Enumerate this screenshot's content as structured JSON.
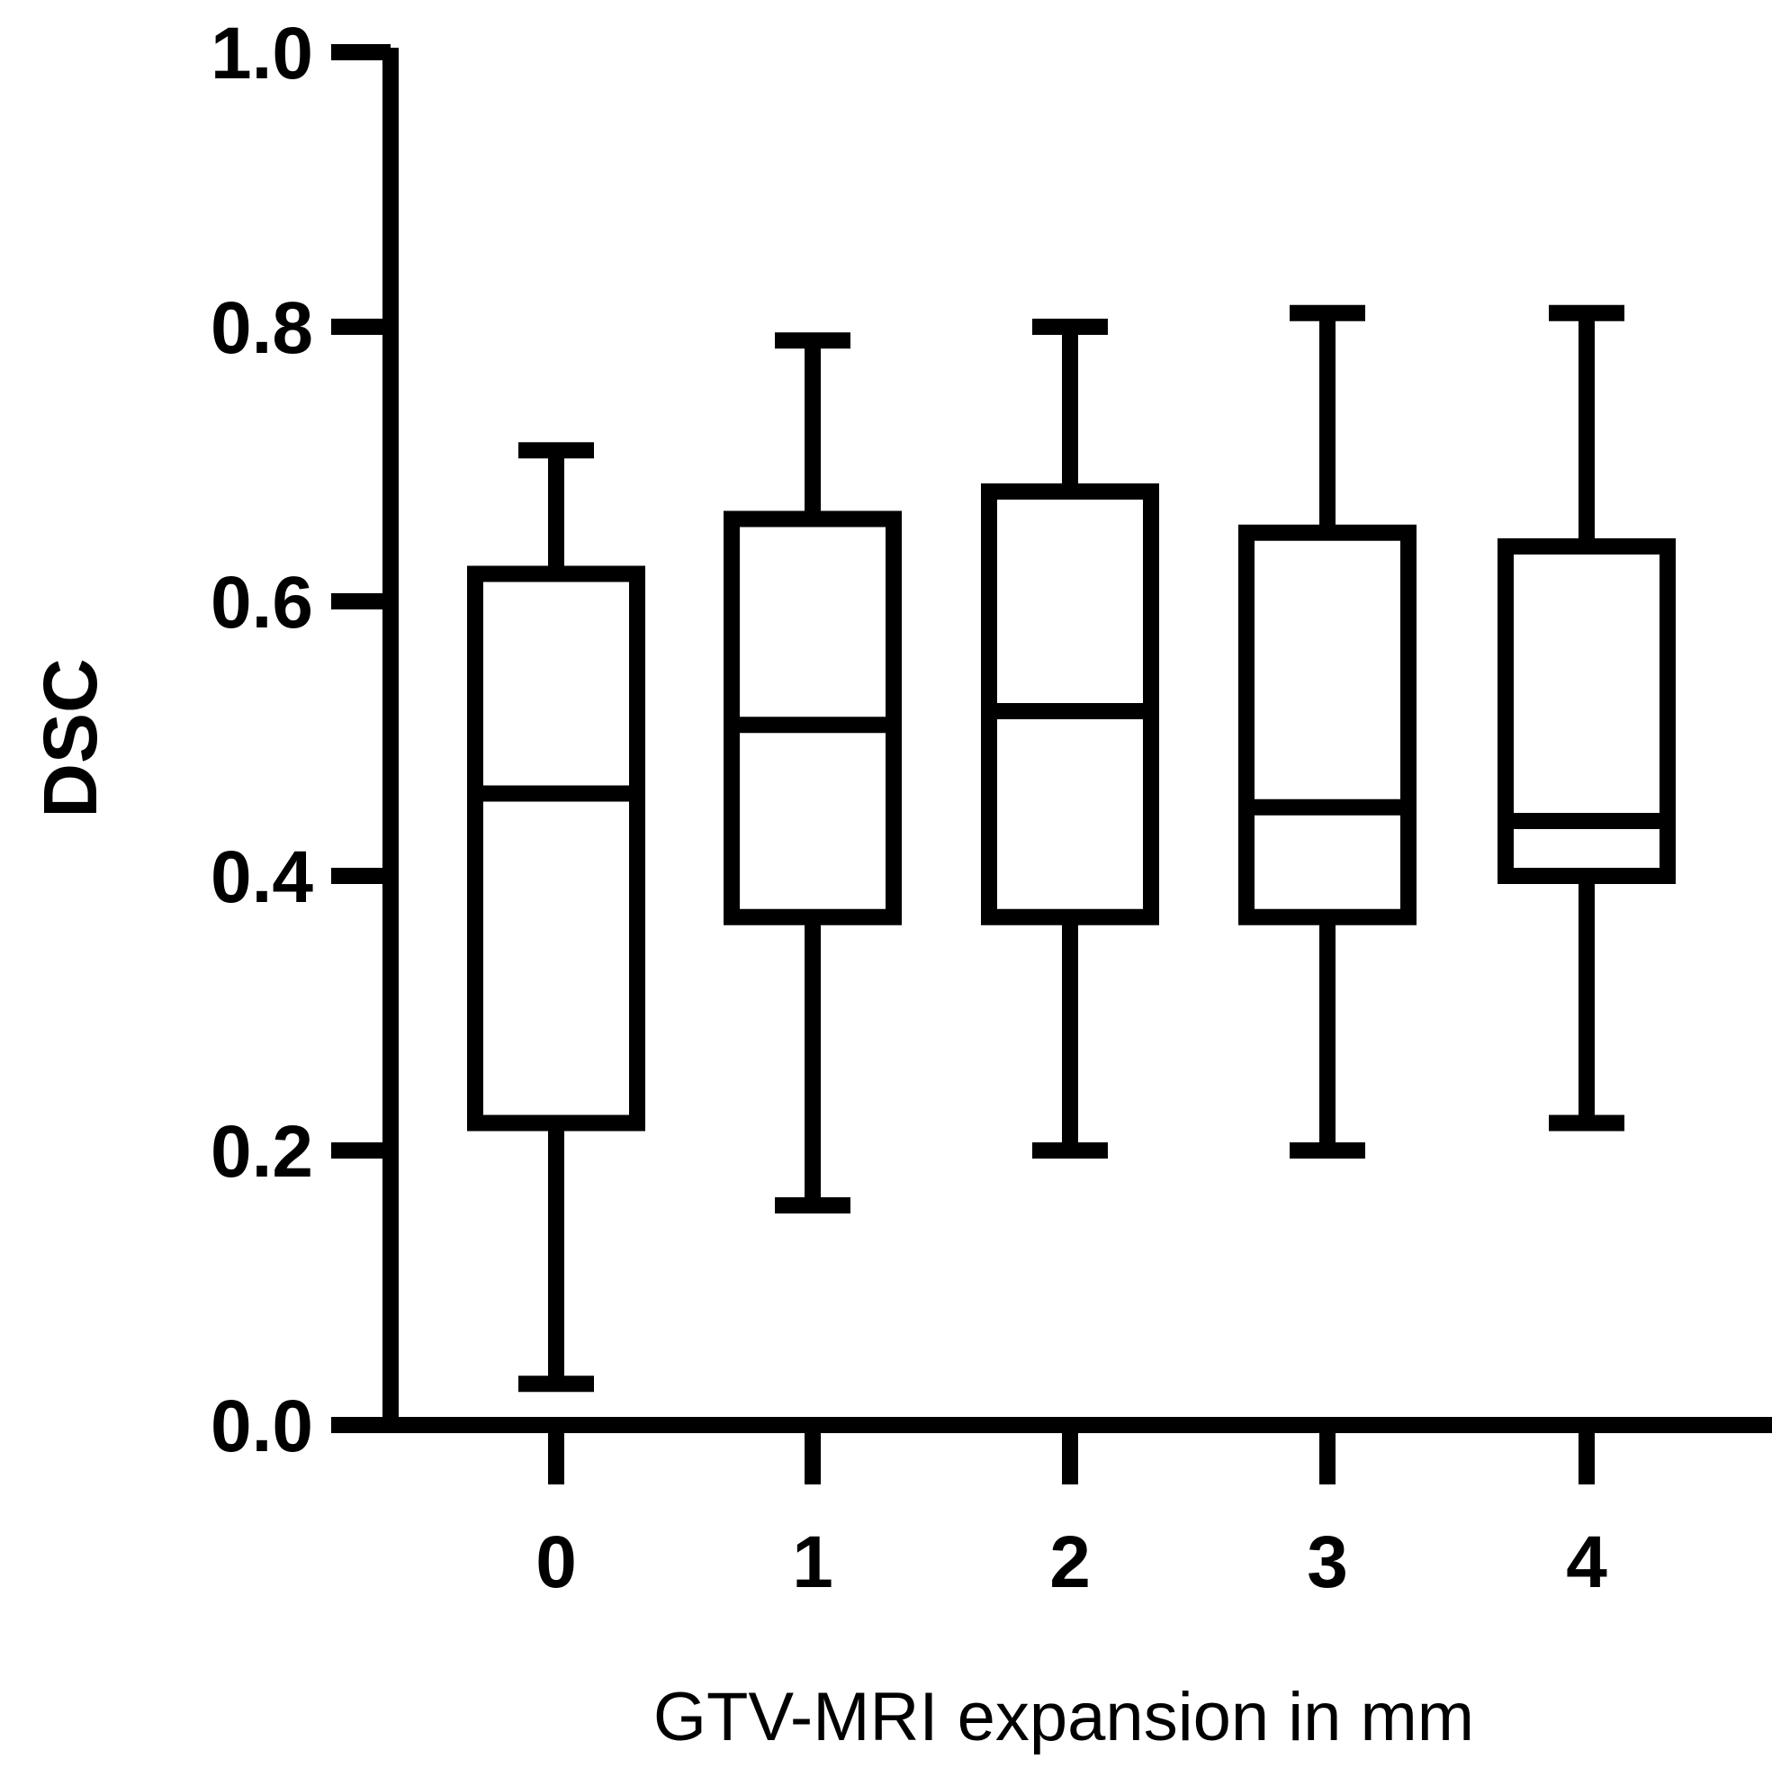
{
  "chart_data": {
    "type": "boxplot",
    "title": "",
    "xlabel": "GTV-MRI expansion in mm",
    "ylabel": "DSC",
    "ylim": [
      0.0,
      1.0
    ],
    "yticks": [
      "0.0",
      "0.2",
      "0.4",
      "0.6",
      "0.8",
      "1.0"
    ],
    "categories": [
      "0",
      "1",
      "2",
      "3",
      "4"
    ],
    "boxes": [
      {
        "category": "0",
        "min": 0.03,
        "q1": 0.22,
        "median": 0.46,
        "q3": 0.62,
        "max": 0.71
      },
      {
        "category": "1",
        "min": 0.16,
        "q1": 0.37,
        "median": 0.51,
        "q3": 0.66,
        "max": 0.79
      },
      {
        "category": "2",
        "min": 0.2,
        "q1": 0.37,
        "median": 0.52,
        "q3": 0.68,
        "max": 0.8
      },
      {
        "category": "3",
        "min": 0.2,
        "q1": 0.37,
        "median": 0.45,
        "q3": 0.65,
        "max": 0.81
      },
      {
        "category": "4",
        "min": 0.22,
        "q1": 0.4,
        "median": 0.44,
        "q3": 0.64,
        "max": 0.81
      }
    ],
    "grid": false,
    "legend": "none",
    "color": "#000000"
  }
}
